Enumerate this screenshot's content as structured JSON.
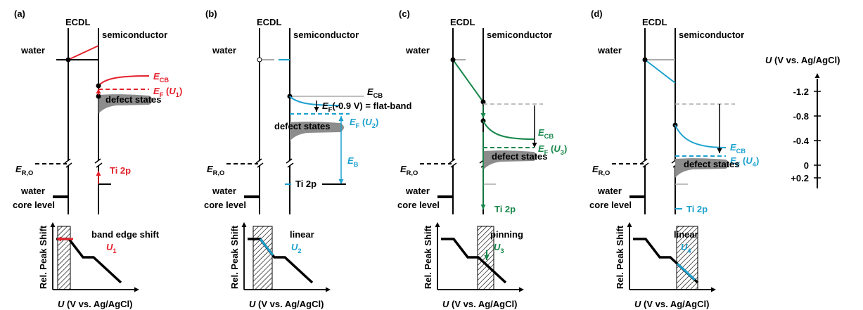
{
  "panels": [
    {
      "tag": "(a)",
      "ecdl": "ECDL",
      "semiconductor": "semiconductor",
      "water": "water",
      "e_cb": {
        "symbol": "E",
        "sub": "CB"
      },
      "e_f": {
        "symbol": "E",
        "sub": "F",
        "open": " (",
        "arg": "U",
        "arg_sub": "1",
        "close": ")"
      },
      "defect_states": "defect states",
      "e_ro": {
        "symbol": "E",
        "sub": "R,O"
      },
      "ti_2p": "Ti 2p",
      "water_core": [
        "water",
        "core level"
      ],
      "regime": "band edge shift",
      "potential": {
        "symbol": "U",
        "sub": "1"
      },
      "y_axis_label": "Rel. Peak Shift",
      "x_axis_label": {
        "symbol": "U",
        "rest": " (V vs. Ag/AgCl)"
      },
      "color": "#e4212b"
    },
    {
      "tag": "(b)",
      "ecdl": "ECDL",
      "semiconductor": "semiconductor",
      "water": "water",
      "e_cb": {
        "symbol": "E",
        "sub": "CB"
      },
      "e_f_flat": {
        "symbol": "E",
        "sub": "F",
        "rest": "(-0.9 V) = flat-band"
      },
      "e_f": {
        "symbol": "E",
        "sub": "F",
        "open": " (",
        "arg": "U",
        "arg_sub": "2",
        "close": ")"
      },
      "e_b": {
        "symbol": "E",
        "sub": "B"
      },
      "defect_states": "defect states",
      "e_ro": {
        "symbol": "E",
        "sub": "R,O"
      },
      "ti_2p": "Ti 2p",
      "water_core": [
        "water",
        "core level"
      ],
      "regime": "linear",
      "potential": {
        "symbol": "U",
        "sub": "2"
      },
      "y_axis_label": "Rel. Peak Shift",
      "x_axis_label": {
        "symbol": "U",
        "rest": " (V vs. Ag/AgCl)"
      },
      "color": "#1ba1cf"
    },
    {
      "tag": "(c)",
      "ecdl": "ECDL",
      "semiconductor": "semiconductor",
      "water": "water",
      "e_cb": {
        "symbol": "E",
        "sub": "CB"
      },
      "e_f": {
        "symbol": "E",
        "sub": "F",
        "open": " (",
        "arg": "U",
        "arg_sub": "3",
        "close": ")"
      },
      "defect_states": "defect states",
      "e_ro": {
        "symbol": "E",
        "sub": "R,O"
      },
      "ti_2p": "Ti 2p",
      "water_core": [
        "water",
        "core level"
      ],
      "regime": "pinning",
      "potential": {
        "symbol": "U",
        "sub": "3"
      },
      "y_axis_label": "Rel. Peak Shift",
      "x_axis_label": {
        "symbol": "U",
        "rest": " (V vs. Ag/AgCl)"
      },
      "color": "#17874a"
    },
    {
      "tag": "(d)",
      "ecdl": "ECDL",
      "semiconductor": "semiconductor",
      "water": "water",
      "e_cb": {
        "symbol": "E",
        "sub": "CB"
      },
      "e_f": {
        "symbol": "E",
        "sub": "F",
        "open": " (",
        "arg": "U",
        "arg_sub": "4",
        "close": ")"
      },
      "defect_states": "defect states",
      "e_ro": {
        "symbol": "E",
        "sub": "R,O"
      },
      "ti_2p": "Ti 2p",
      "water_core": [
        "water",
        "core level"
      ],
      "regime": "linear",
      "potential": {
        "symbol": "U",
        "sub": "4"
      },
      "y_axis_label": "Rel. Peak Shift",
      "x_axis_label": {
        "symbol": "U",
        "rest": " (V vs. Ag/AgCl)"
      },
      "color": "#1ba1cf"
    }
  ],
  "potential_axis": {
    "label": {
      "symbol": "U",
      "rest": " (V vs. Ag/AgCl)"
    },
    "ticks": [
      "-1.2",
      "-0.8",
      "-0.4",
      "0",
      "+0.2"
    ]
  }
}
